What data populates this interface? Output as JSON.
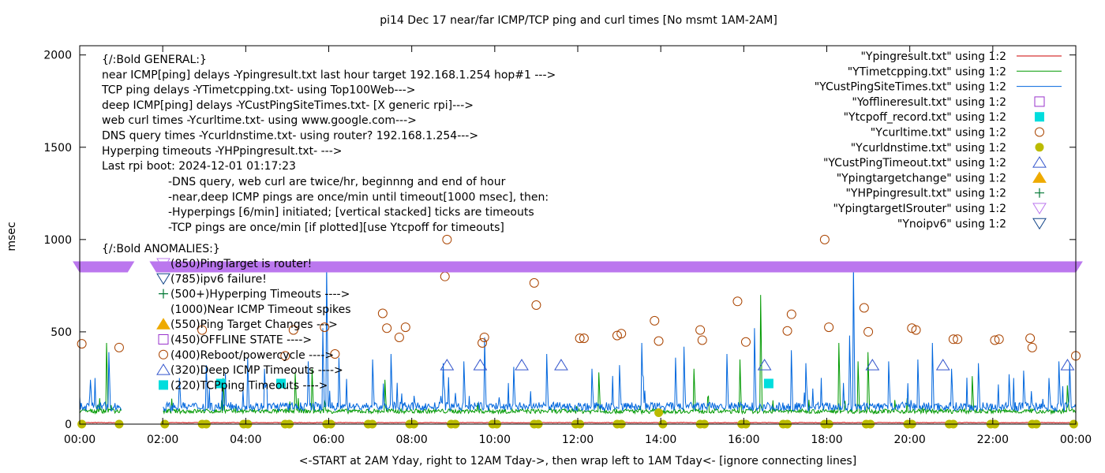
{
  "chart_data": {
    "type": "line",
    "title": "pi14 Dec 17  near/far ICMP/TCP ping and curl times [No msmt 1AM-2AM]",
    "xlabel": "<-START at 2AM Yday, right to 12AM Tday->, then wrap left to 1AM Tday<- [ignore connecting lines]",
    "ylabel": "msec",
    "xlim": [
      0,
      24
    ],
    "ylim": [
      0,
      2050
    ],
    "x_tick_labels": [
      "00:00",
      "02:00",
      "04:00",
      "06:00",
      "08:00",
      "10:00",
      "12:00",
      "14:00",
      "16:00",
      "18:00",
      "20:00",
      "22:00",
      "00:00"
    ],
    "x_ticks": [
      0,
      2,
      4,
      6,
      8,
      10,
      12,
      14,
      16,
      18,
      20,
      22,
      24
    ],
    "y_ticks": [
      0,
      500,
      1000,
      1500,
      2000
    ],
    "y_tick_labels": [
      "0",
      "500",
      "1000",
      "1500",
      "2000"
    ],
    "grid": false,
    "legend_position": "top-right",
    "legend": [
      {
        "label": "\"Ypingresult.txt\" using 1:2",
        "marker": "line",
        "color": "#cc0000"
      },
      {
        "label": "\"YTimetcpping.txt\" using 1:2",
        "marker": "line",
        "color": "#009900"
      },
      {
        "label": "\"YCustPingSiteTimes.txt\" using 1:2",
        "marker": "line",
        "color": "#0066dd"
      },
      {
        "label": "\"Yofflineresult.txt\" using 1:2",
        "marker": "open-square",
        "color": "#9933cc"
      },
      {
        "label": "\"Ytcpoff_record.txt\" using 1:2",
        "marker": "filled-square",
        "color": "#00dddd"
      },
      {
        "label": "\"Ycurltime.txt\" using 1:2",
        "marker": "open-circle",
        "color": "#aa4400"
      },
      {
        "label": "\"Ycurldnstime.txt\" using 1:2",
        "marker": "filled-circle",
        "color": "#bbbb00"
      },
      {
        "label": "\"YCustPingTimeout.txt\" using 1:2",
        "marker": "open-triangle-up",
        "color": "#3355cc"
      },
      {
        "label": "\"Ypingtargetchange\" using 1:2",
        "marker": "filled-triangle-up",
        "color": "#eeaa00"
      },
      {
        "label": "\"YHPpingresult.txt\" using 1:2",
        "marker": "plus",
        "color": "#007733"
      },
      {
        "label": "\"YpingtargetISrouter\" using 1:2",
        "marker": "open-triangle-down",
        "color": "#bb77ee"
      },
      {
        "label": "\"Ynoipv6\" using 1:2",
        "marker": "open-triangle-down",
        "color": "#114488"
      }
    ],
    "annotations_general": [
      "{/:Bold GENERAL:}",
      "near ICMP[ping] delays -Ypingresult.txt last hour target 192.168.1.254 hop#1 --->",
      "TCP ping delays -YTimetcpping.txt- using Top100Web--->",
      "deep ICMP[ping] delays -YCustPingSiteTimes.txt- [X generic rpi]--->",
      "web curl times -Ycurltime.txt- using www.google.com--->",
      "DNS query times -Ycurldnstime.txt- using router? 192.168.1.254--->",
      "Hyperping timeouts -YHPpingresult.txt- --->",
      "Last rpi boot: 2024-12-01 01:17:23"
    ],
    "annotations_notes": [
      "-DNS query, web curl are twice/hr, beginnng and end of hour",
      "-near,deep ICMP pings are once/min until timeout[1000 msec], then:",
      "  -Hyperpings [6/min] initiated; [vertical stacked] ticks are timeouts",
      "-TCP pings are once/min [if plotted][use Ytcpoff for timeouts]"
    ],
    "anomalies_header": "{/:Bold ANOMALIES:}",
    "anomalies": [
      {
        "text": "(850)PingTarget is router!",
        "marker": "open-triangle-down",
        "color": "#bb77ee"
      },
      {
        "text": "(785)ipv6 failure!",
        "marker": "open-triangle-down",
        "color": "#114488"
      },
      {
        "text": "(500+)Hyperping Timeouts ---->",
        "marker": "plus",
        "color": "#007733"
      },
      {
        "text": "(1000)Near ICMP Timeout spikes",
        "marker": "none",
        "color": "#000000"
      },
      {
        "text": "(550)Ping Target Changes --->",
        "marker": "filled-triangle-up",
        "color": "#eeaa00"
      },
      {
        "text": "(450)OFFLINE STATE ---->",
        "marker": "open-square",
        "color": "#9933cc"
      },
      {
        "text": "(400)Reboot/powercycle ---->",
        "marker": "open-circle",
        "color": "#aa4400"
      },
      {
        "text": "(320)Deep ICMP Timeouts ---->",
        "marker": "open-triangle-up",
        "color": "#3355cc"
      },
      {
        "text": "(220)TCPping Timeouts ---->",
        "marker": "filled-square",
        "color": "#00dddd"
      }
    ],
    "series": [
      {
        "name": "\"Ypingresult.txt\" using 1:2",
        "type": "line",
        "color": "#cc0000",
        "baseline": 8,
        "spikes": []
      },
      {
        "name": "\"YTimetcpping.txt\" using 1:2",
        "type": "line",
        "color": "#009900",
        "baseline": 70,
        "spikes": [
          [
            0.65,
            440
          ],
          [
            3.45,
            250
          ],
          [
            5.2,
            280
          ],
          [
            5.6,
            300
          ],
          [
            7.35,
            240
          ],
          [
            12.5,
            280
          ],
          [
            14.8,
            300
          ],
          [
            15.9,
            350
          ],
          [
            16.4,
            700
          ],
          [
            18.3,
            440
          ],
          [
            18.75,
            340
          ],
          [
            19.0,
            390
          ],
          [
            21.5,
            260
          ],
          [
            23.8,
            210
          ]
        ]
      },
      {
        "name": "\"YCustPingSiteTimes.txt\" using 1:2",
        "type": "line",
        "color": "#0066dd",
        "baseline": 95,
        "spikes": [
          [
            0.25,
            240
          ],
          [
            0.7,
            390
          ],
          [
            1.05,
            340
          ],
          [
            2.4,
            250
          ],
          [
            3.05,
            320
          ],
          [
            4.05,
            360
          ],
          [
            4.45,
            300
          ],
          [
            5.5,
            340
          ],
          [
            5.85,
            520
          ],
          [
            5.95,
            860
          ],
          [
            6.25,
            360
          ],
          [
            7.05,
            350
          ],
          [
            7.5,
            380
          ],
          [
            8.75,
            330
          ],
          [
            9.25,
            340
          ],
          [
            9.75,
            470
          ],
          [
            10.45,
            310
          ],
          [
            11.25,
            380
          ],
          [
            12.35,
            300
          ],
          [
            13.0,
            320
          ],
          [
            13.55,
            440
          ],
          [
            14.35,
            360
          ],
          [
            14.55,
            420
          ],
          [
            15.6,
            380
          ],
          [
            16.25,
            520
          ],
          [
            17.15,
            400
          ],
          [
            17.5,
            330
          ],
          [
            18.55,
            480
          ],
          [
            18.65,
            870
          ],
          [
            19.5,
            340
          ],
          [
            20.2,
            350
          ],
          [
            20.55,
            440
          ],
          [
            21.0,
            300
          ],
          [
            21.65,
            330
          ],
          [
            22.4,
            270
          ],
          [
            22.75,
            290
          ],
          [
            23.35,
            250
          ],
          [
            23.6,
            340
          ],
          [
            23.85,
            330
          ]
        ]
      },
      {
        "name": "\"Ycurltime.txt\" using 1:2",
        "type": "points",
        "marker": "open-circle",
        "color": "#aa4400",
        "points": [
          [
            0.05,
            435
          ],
          [
            0.95,
            415
          ],
          [
            8.8,
            800
          ],
          [
            8.85,
            1000
          ],
          [
            9.75,
            470
          ],
          [
            10.95,
            765
          ],
          [
            11.0,
            645
          ],
          [
            5.15,
            510
          ],
          [
            7.3,
            600
          ],
          [
            7.4,
            520
          ],
          [
            7.7,
            470
          ],
          [
            7.85,
            525
          ],
          [
            9.7,
            440
          ],
          [
            13.85,
            560
          ],
          [
            13.95,
            450
          ],
          [
            14.95,
            510
          ],
          [
            15.0,
            455
          ],
          [
            15.85,
            665
          ],
          [
            16.05,
            445
          ],
          [
            17.05,
            505
          ],
          [
            17.15,
            595
          ],
          [
            17.95,
            1000
          ],
          [
            18.05,
            525
          ],
          [
            18.9,
            630
          ],
          [
            19.0,
            500
          ],
          [
            20.05,
            520
          ],
          [
            20.15,
            510
          ],
          [
            21.05,
            460
          ],
          [
            21.15,
            460
          ],
          [
            22.05,
            455
          ],
          [
            22.15,
            460
          ],
          [
            22.9,
            465
          ],
          [
            22.95,
            415
          ],
          [
            24.0,
            370
          ],
          [
            12.05,
            465
          ],
          [
            12.15,
            465
          ],
          [
            12.95,
            480
          ],
          [
            13.05,
            490
          ],
          [
            5.9,
            525
          ],
          [
            2.95,
            510
          ],
          [
            6.15,
            380
          ],
          [
            4.95,
            370
          ]
        ]
      },
      {
        "name": "\"Ycurldnstime.txt\" using 1:2",
        "type": "points",
        "marker": "filled-circle",
        "color": "#bbbb00",
        "points": [
          [
            0.05,
            0
          ],
          [
            0.95,
            0
          ],
          [
            2.05,
            0
          ],
          [
            2.95,
            0
          ],
          [
            3.05,
            0
          ],
          [
            3.95,
            0
          ],
          [
            4.05,
            0
          ],
          [
            4.95,
            0
          ],
          [
            5.05,
            0
          ],
          [
            5.95,
            0
          ],
          [
            6.05,
            0
          ],
          [
            6.95,
            0
          ],
          [
            7.05,
            0
          ],
          [
            7.95,
            0
          ],
          [
            8.05,
            0
          ],
          [
            8.95,
            0
          ],
          [
            9.05,
            0
          ],
          [
            9.95,
            0
          ],
          [
            10.05,
            0
          ],
          [
            10.95,
            0
          ],
          [
            11.05,
            0
          ],
          [
            11.95,
            0
          ],
          [
            12.05,
            0
          ],
          [
            12.95,
            0
          ],
          [
            13.05,
            0
          ],
          [
            13.95,
            62
          ],
          [
            14.05,
            0
          ],
          [
            14.95,
            0
          ],
          [
            15.05,
            0
          ],
          [
            15.95,
            0
          ],
          [
            16.05,
            0
          ],
          [
            16.95,
            0
          ],
          [
            17.05,
            0
          ],
          [
            17.95,
            0
          ],
          [
            18.05,
            0
          ],
          [
            18.95,
            0
          ],
          [
            19.05,
            0
          ],
          [
            19.95,
            0
          ],
          [
            20.05,
            0
          ],
          [
            20.95,
            0
          ],
          [
            21.05,
            0
          ],
          [
            21.95,
            0
          ],
          [
            22.05,
            0
          ],
          [
            22.95,
            0
          ],
          [
            23.05,
            0
          ],
          [
            23.95,
            0
          ]
        ]
      },
      {
        "name": "\"YCustPingTimeout.txt\" using 1:2",
        "type": "points",
        "marker": "open-triangle-up",
        "color": "#3355cc",
        "points": [
          [
            8.85,
            320
          ],
          [
            9.65,
            320
          ],
          [
            10.65,
            320
          ],
          [
            11.6,
            320
          ],
          [
            16.5,
            320
          ],
          [
            19.1,
            320
          ],
          [
            20.8,
            320
          ],
          [
            23.8,
            320
          ]
        ]
      },
      {
        "name": "\"Ytcpoff_record.txt\" using 1:2",
        "type": "points",
        "marker": "filled-square",
        "color": "#00dddd",
        "points": [
          [
            3.4,
            220
          ],
          [
            4.85,
            220
          ],
          [
            16.6,
            220
          ]
        ]
      },
      {
        "name": "\"YpingtargetISrouter\" using 1:2",
        "type": "band",
        "color": "#bb77ee",
        "y": 850,
        "segments": [
          [
            0,
            1.15
          ],
          [
            1.85,
            24
          ]
        ]
      }
    ]
  }
}
